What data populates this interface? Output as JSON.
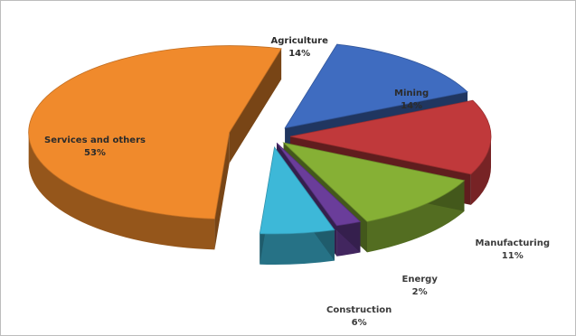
{
  "chart_data": {
    "type": "pie",
    "title": "",
    "slices": [
      {
        "label": "Agriculture",
        "value": 14,
        "display": "14%",
        "color": "#3f6cc0"
      },
      {
        "label": "Mining",
        "value": 14,
        "display": "14%",
        "color": "#c0393b"
      },
      {
        "label": "Manufacturing",
        "value": 11,
        "display": "11%",
        "color": "#86b035"
      },
      {
        "label": "Energy",
        "value": 2,
        "display": "2%",
        "color": "#6a3d9a"
      },
      {
        "label": "Construction",
        "value": 6,
        "display": "6%",
        "color": "#3db8d8"
      },
      {
        "label": "Services and others",
        "value": 53,
        "display": "53%",
        "color": "#f08a2c"
      }
    ],
    "style": "3d-exploded",
    "legend": "none"
  }
}
